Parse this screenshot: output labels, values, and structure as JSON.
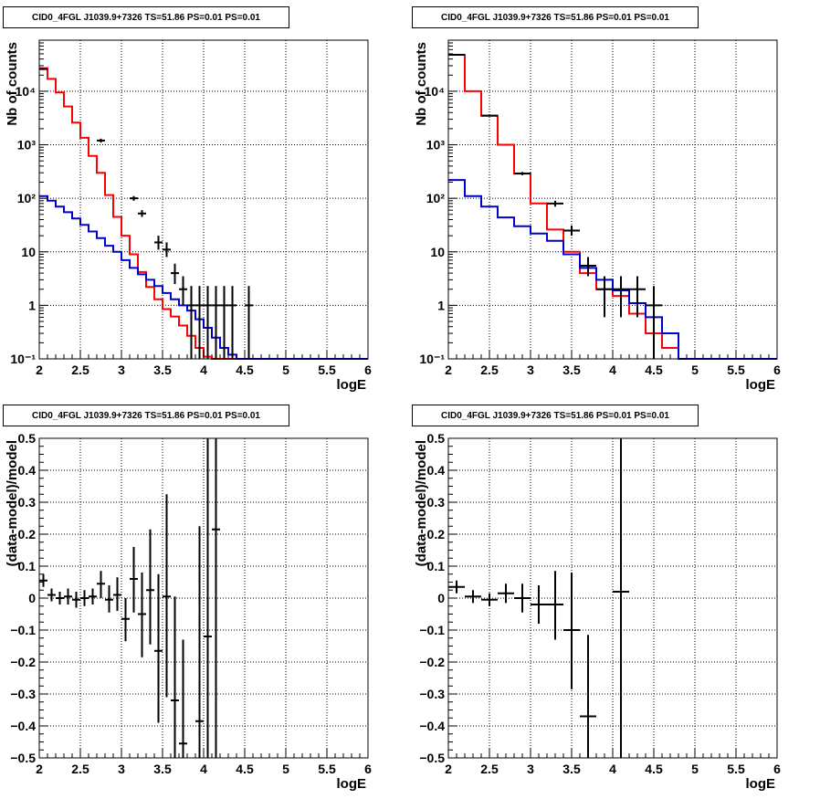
{
  "panels": [
    {
      "title": "CID0_4FGL J1039.9+7326 TS=51.86 PS=0.01 PS=0.01",
      "xlabel": "logE",
      "ylabel": "Nb of counts"
    },
    {
      "title": "CID0_4FGL J1039.9+7326 TS=51.86 PS=0.01 PS=0.01",
      "xlabel": "logE",
      "ylabel": "Nb of counts"
    },
    {
      "title": "CID0_4FGL J1039.9+7326 TS=51.86 PS=0.01 PS=0.01",
      "xlabel": "logE",
      "ylabel": "(data-model)/model"
    },
    {
      "title": "CID0_4FGL J1039.9+7326 TS=51.86 PS=0.01 PS=0.01",
      "xlabel": "logE",
      "ylabel": "(data-model)/model"
    }
  ],
  "chart_data": [
    {
      "type": "line",
      "title": "CID0_4FGL J1039.9+7326 TS=51.86 PS=0.01 PS=0.01",
      "xlabel": "logE",
      "ylabel": "Nb of counts",
      "xlim": [
        2,
        6
      ],
      "ylim": [
        0.1,
        90000
      ],
      "yscale": "log",
      "grid": true,
      "xticks": [
        "2",
        "2.5",
        "3",
        "3.5",
        "4",
        "4.5",
        "5",
        "5.5",
        "6"
      ],
      "yticks": [
        {
          "v": 0.1,
          "label": "10⁻¹"
        },
        {
          "v": 1,
          "label": "1"
        },
        {
          "v": 10,
          "label": "10"
        },
        {
          "v": 100,
          "label": "10²"
        },
        {
          "v": 1000,
          "label": "10³"
        },
        {
          "v": 10000,
          "label": "10⁴"
        }
      ],
      "series": [
        {
          "kind": "step",
          "color": "#ff0000",
          "edges": [
            2.0,
            2.1,
            2.2,
            2.3,
            2.4,
            2.5,
            2.6,
            2.7,
            2.8,
            2.9,
            3.0,
            3.1,
            3.2,
            3.3,
            3.4,
            3.5,
            3.6,
            3.7,
            3.8,
            3.9,
            4.0,
            4.1,
            4.2,
            4.3,
            4.4,
            4.5,
            4.6,
            4.7,
            4.8,
            4.9,
            5.0,
            5.1,
            5.2,
            5.3,
            5.4,
            5.5,
            5.6,
            5.7,
            5.8,
            5.9,
            6.0
          ],
          "values": [
            27000,
            17000,
            9500,
            5200,
            2600,
            1350,
            620,
            300,
            115,
            45,
            20,
            9,
            4.2,
            2.2,
            1.3,
            0.85,
            0.62,
            0.42,
            0.27,
            0.16,
            0.11,
            0.1,
            0.1,
            0.1,
            0.1,
            0.1,
            0.1,
            0.1,
            0.1,
            0.1,
            0.1,
            0.1,
            0.1,
            0.1,
            0.1,
            0.1,
            0.1,
            0.1,
            0.1,
            0.1
          ]
        },
        {
          "kind": "step",
          "color": "#0000cc",
          "edges": [
            2.0,
            2.1,
            2.2,
            2.3,
            2.4,
            2.5,
            2.6,
            2.7,
            2.8,
            2.9,
            3.0,
            3.1,
            3.2,
            3.3,
            3.4,
            3.5,
            3.6,
            3.7,
            3.8,
            3.9,
            4.0,
            4.1,
            4.2,
            4.3,
            4.4,
            4.5,
            4.6,
            4.7,
            4.8,
            4.9,
            5.0,
            5.1,
            5.2,
            5.3,
            5.4,
            5.5,
            5.6,
            5.7,
            5.8,
            5.9,
            6.0
          ],
          "values": [
            110,
            90,
            70,
            55,
            42,
            32,
            24,
            18,
            13,
            10,
            7,
            5,
            3.8,
            3,
            2.3,
            1.7,
            1.3,
            1,
            0.8,
            0.55,
            0.38,
            0.25,
            0.16,
            0.12,
            0.1,
            0.1,
            0.1,
            0.1,
            0.1,
            0.1,
            0.1,
            0.1,
            0.1,
            0.1,
            0.1,
            0.1,
            0.1,
            0.1,
            0.1,
            0.1
          ]
        },
        {
          "kind": "errorbar",
          "color": "#000000",
          "points": [
            {
              "x": 2.05,
              "y": 26000,
              "xerr": 0.05,
              "lo": 25000,
              "hi": 27000
            },
            {
              "x": 2.75,
              "y": 1200,
              "xerr": 0.05,
              "lo": 1100,
              "hi": 1300
            },
            {
              "x": 3.15,
              "y": 100,
              "xerr": 0.05,
              "lo": 90,
              "hi": 110
            },
            {
              "x": 3.25,
              "y": 52,
              "xerr": 0.05,
              "lo": 45,
              "hi": 60
            },
            {
              "x": 3.45,
              "y": 15,
              "xerr": 0.05,
              "lo": 11,
              "hi": 20
            },
            {
              "x": 3.55,
              "y": 11,
              "xerr": 0.05,
              "lo": 8,
              "hi": 15
            },
            {
              "x": 3.65,
              "y": 4,
              "xerr": 0.05,
              "lo": 2.5,
              "hi": 6
            },
            {
              "x": 3.75,
              "y": 2,
              "xerr": 0.05,
              "lo": 1,
              "hi": 3.5
            },
            {
              "x": 3.85,
              "y": 1,
              "xerr": 0.05,
              "lo": 0.1,
              "hi": 2.3
            },
            {
              "x": 3.95,
              "y": 1,
              "xerr": 0.05,
              "lo": 0.1,
              "hi": 2.3
            },
            {
              "x": 4.05,
              "y": 1,
              "xerr": 0.05,
              "lo": 0.1,
              "hi": 2.3
            },
            {
              "x": 4.15,
              "y": 1,
              "xerr": 0.05,
              "lo": 0.1,
              "hi": 2.3
            },
            {
              "x": 4.25,
              "y": 1,
              "xerr": 0.05,
              "lo": 0.1,
              "hi": 2.3
            },
            {
              "x": 4.35,
              "y": 1,
              "xerr": 0.05,
              "lo": 0.1,
              "hi": 2.3
            },
            {
              "x": 4.55,
              "y": 1,
              "xerr": 0.05,
              "lo": 0.1,
              "hi": 2.3
            }
          ]
        }
      ]
    },
    {
      "type": "line",
      "title": "CID0_4FGL J1039.9+7326 TS=51.86 PS=0.01 PS=0.01",
      "xlabel": "logE",
      "ylabel": "Nb of counts",
      "xlim": [
        2,
        6
      ],
      "ylim": [
        0.1,
        90000
      ],
      "yscale": "log",
      "grid": true,
      "xticks": [
        "2",
        "2.5",
        "3",
        "3.5",
        "4",
        "4.5",
        "5",
        "5.5",
        "6"
      ],
      "yticks": [
        {
          "v": 0.1,
          "label": "10⁻¹"
        },
        {
          "v": 1,
          "label": "1"
        },
        {
          "v": 10,
          "label": "10"
        },
        {
          "v": 100,
          "label": "10²"
        },
        {
          "v": 1000,
          "label": "10³"
        },
        {
          "v": 10000,
          "label": "10⁴"
        }
      ],
      "series": [
        {
          "kind": "step",
          "color": "#ff0000",
          "edges": [
            2.0,
            2.2,
            2.4,
            2.6,
            2.8,
            3.0,
            3.2,
            3.4,
            3.6,
            3.8,
            4.0,
            4.2,
            4.4,
            4.6,
            4.8,
            5.0,
            5.2,
            5.4,
            5.6,
            5.8,
            6.0
          ],
          "values": [
            48000,
            10000,
            3500,
            1000,
            290,
            80,
            26,
            10,
            4,
            2,
            1.5,
            0.7,
            0.3,
            0.16,
            0.1,
            0.1,
            0.1,
            0.1,
            0.1,
            0.1
          ]
        },
        {
          "kind": "step",
          "color": "#0000cc",
          "edges": [
            2.0,
            2.2,
            2.4,
            2.6,
            2.8,
            3.0,
            3.2,
            3.4,
            3.6,
            3.8,
            4.0,
            4.2,
            4.4,
            4.6,
            4.8,
            5.0,
            5.2,
            5.4,
            5.6,
            5.8,
            6.0
          ],
          "values": [
            220,
            110,
            70,
            44,
            30,
            22,
            16,
            9,
            5,
            3,
            1.9,
            1.1,
            0.6,
            0.3,
            0.1,
            0.1,
            0.1,
            0.1,
            0.1,
            0.1
          ]
        },
        {
          "kind": "errorbar",
          "color": "#000000",
          "points": [
            {
              "x": 2.1,
              "y": 48000,
              "xerr": 0.1,
              "lo": 47000,
              "hi": 49000
            },
            {
              "x": 2.5,
              "y": 3500,
              "xerr": 0.1,
              "lo": 3400,
              "hi": 3600
            },
            {
              "x": 2.9,
              "y": 290,
              "xerr": 0.1,
              "lo": 270,
              "hi": 310
            },
            {
              "x": 3.3,
              "y": 80,
              "xerr": 0.1,
              "lo": 70,
              "hi": 90
            },
            {
              "x": 3.5,
              "y": 25,
              "xerr": 0.1,
              "lo": 20,
              "hi": 31
            },
            {
              "x": 3.7,
              "y": 5.5,
              "xerr": 0.1,
              "lo": 3.5,
              "hi": 8
            },
            {
              "x": 3.9,
              "y": 2,
              "xerr": 0.1,
              "lo": 0.6,
              "hi": 3.5
            },
            {
              "x": 4.1,
              "y": 2,
              "xerr": 0.1,
              "lo": 0.6,
              "hi": 3.5
            },
            {
              "x": 4.3,
              "y": 2,
              "xerr": 0.1,
              "lo": 0.6,
              "hi": 3.5
            },
            {
              "x": 4.5,
              "y": 1,
              "xerr": 0.1,
              "lo": 0.1,
              "hi": 2.3
            }
          ]
        }
      ]
    },
    {
      "type": "scatter",
      "title": "CID0_4FGL J1039.9+7326 TS=51.86 PS=0.01 PS=0.01",
      "xlabel": "logE",
      "ylabel": "(data-model)/model",
      "xlim": [
        2,
        6
      ],
      "ylim": [
        -0.5,
        0.5
      ],
      "yscale": "linear",
      "grid": true,
      "xticks": [
        "2",
        "2.5",
        "3",
        "3.5",
        "4",
        "4.5",
        "5",
        "5.5",
        "6"
      ],
      "yticks": [
        {
          "v": -0.5,
          "label": "−0.5"
        },
        {
          "v": -0.4,
          "label": "−0.4"
        },
        {
          "v": -0.3,
          "label": "−0.3"
        },
        {
          "v": -0.2,
          "label": "−0.2"
        },
        {
          "v": -0.1,
          "label": "−0.1"
        },
        {
          "v": 0,
          "label": "0"
        },
        {
          "v": 0.1,
          "label": "0.1"
        },
        {
          "v": 0.2,
          "label": "0.2"
        },
        {
          "v": 0.3,
          "label": "0.3"
        },
        {
          "v": 0.4,
          "label": "0.4"
        },
        {
          "v": 0.5,
          "label": "0.5"
        }
      ],
      "series": [
        {
          "kind": "errorbar",
          "color": "#000000",
          "points": [
            {
              "x": 2.05,
              "y": 0.055,
              "xerr": 0.05,
              "lo": 0.035,
              "hi": 0.075
            },
            {
              "x": 2.15,
              "y": 0.01,
              "xerr": 0.05,
              "lo": -0.01,
              "hi": 0.03
            },
            {
              "x": 2.25,
              "y": 0.0,
              "xerr": 0.05,
              "lo": -0.02,
              "hi": 0.02
            },
            {
              "x": 2.35,
              "y": 0.005,
              "xerr": 0.05,
              "lo": -0.02,
              "hi": 0.03
            },
            {
              "x": 2.45,
              "y": -0.005,
              "xerr": 0.05,
              "lo": -0.03,
              "hi": 0.02
            },
            {
              "x": 2.55,
              "y": 0.0,
              "xerr": 0.05,
              "lo": -0.025,
              "hi": 0.025
            },
            {
              "x": 2.65,
              "y": 0.005,
              "xerr": 0.05,
              "lo": -0.02,
              "hi": 0.03
            },
            {
              "x": 2.75,
              "y": 0.045,
              "xerr": 0.05,
              "lo": 0.0,
              "hi": 0.085
            },
            {
              "x": 2.85,
              "y": -0.005,
              "xerr": 0.05,
              "lo": -0.045,
              "hi": 0.04
            },
            {
              "x": 2.95,
              "y": 0.01,
              "xerr": 0.05,
              "lo": -0.04,
              "hi": 0.065
            },
            {
              "x": 3.05,
              "y": -0.065,
              "xerr": 0.05,
              "lo": -0.135,
              "hi": 0.0
            },
            {
              "x": 3.15,
              "y": 0.06,
              "xerr": 0.05,
              "lo": -0.045,
              "hi": 0.16
            },
            {
              "x": 3.25,
              "y": -0.05,
              "xerr": 0.05,
              "lo": -0.185,
              "hi": 0.08
            },
            {
              "x": 3.35,
              "y": 0.025,
              "xerr": 0.05,
              "lo": -0.145,
              "hi": 0.215
            },
            {
              "x": 3.45,
              "y": -0.165,
              "xerr": 0.05,
              "lo": -0.39,
              "hi": 0.075
            },
            {
              "x": 3.55,
              "y": 0.005,
              "xerr": 0.05,
              "lo": -0.31,
              "hi": 0.325
            },
            {
              "x": 3.65,
              "y": -0.32,
              "xerr": 0.05,
              "lo": -0.5,
              "hi": 0.005
            },
            {
              "x": 3.75,
              "y": -0.455,
              "xerr": 0.05,
              "lo": -0.5,
              "hi": -0.13
            },
            {
              "x": 3.95,
              "y": -0.385,
              "xerr": 0.05,
              "lo": -0.5,
              "hi": 0.225
            },
            {
              "x": 4.05,
              "y": -0.12,
              "xerr": 0.05,
              "lo": -0.5,
              "hi": 0.5
            },
            {
              "x": 4.15,
              "y": 0.215,
              "xerr": 0.05,
              "lo": -0.5,
              "hi": 0.5
            }
          ]
        }
      ]
    },
    {
      "type": "scatter",
      "title": "CID0_4FGL J1039.9+7326 TS=51.86 PS=0.01 PS=0.01",
      "xlabel": "logE",
      "ylabel": "(data-model)/model",
      "xlim": [
        2,
        6
      ],
      "ylim": [
        -0.5,
        0.5
      ],
      "yscale": "linear",
      "grid": true,
      "xticks": [
        "2",
        "2.5",
        "3",
        "3.5",
        "4",
        "4.5",
        "5",
        "5.5",
        "6"
      ],
      "yticks": [
        {
          "v": -0.5,
          "label": "−0.5"
        },
        {
          "v": -0.4,
          "label": "−0.4"
        },
        {
          "v": -0.3,
          "label": "−0.3"
        },
        {
          "v": -0.2,
          "label": "−0.2"
        },
        {
          "v": -0.1,
          "label": "−0.1"
        },
        {
          "v": 0,
          "label": "0"
        },
        {
          "v": 0.1,
          "label": "0.1"
        },
        {
          "v": 0.2,
          "label": "0.2"
        },
        {
          "v": 0.3,
          "label": "0.3"
        },
        {
          "v": 0.4,
          "label": "0.4"
        },
        {
          "v": 0.5,
          "label": "0.5"
        }
      ],
      "series": [
        {
          "kind": "errorbar",
          "color": "#000000",
          "points": [
            {
              "x": 2.1,
              "y": 0.035,
              "xerr": 0.1,
              "lo": 0.015,
              "hi": 0.055
            },
            {
              "x": 2.3,
              "y": 0.005,
              "xerr": 0.1,
              "lo": -0.015,
              "hi": 0.025
            },
            {
              "x": 2.5,
              "y": -0.005,
              "xerr": 0.1,
              "lo": -0.025,
              "hi": 0.015
            },
            {
              "x": 2.7,
              "y": 0.015,
              "xerr": 0.1,
              "lo": -0.015,
              "hi": 0.045
            },
            {
              "x": 2.9,
              "y": 0.0,
              "xerr": 0.1,
              "lo": -0.045,
              "hi": 0.045
            },
            {
              "x": 3.1,
              "y": -0.02,
              "xerr": 0.1,
              "lo": -0.08,
              "hi": 0.04
            },
            {
              "x": 3.3,
              "y": -0.02,
              "xerr": 0.1,
              "lo": -0.13,
              "hi": 0.085
            },
            {
              "x": 3.5,
              "y": -0.1,
              "xerr": 0.1,
              "lo": -0.285,
              "hi": 0.08
            },
            {
              "x": 3.7,
              "y": -0.37,
              "xerr": 0.1,
              "lo": -0.5,
              "hi": -0.115
            },
            {
              "x": 4.1,
              "y": 0.02,
              "xerr": 0.1,
              "lo": -0.5,
              "hi": 0.5
            }
          ]
        }
      ]
    }
  ]
}
